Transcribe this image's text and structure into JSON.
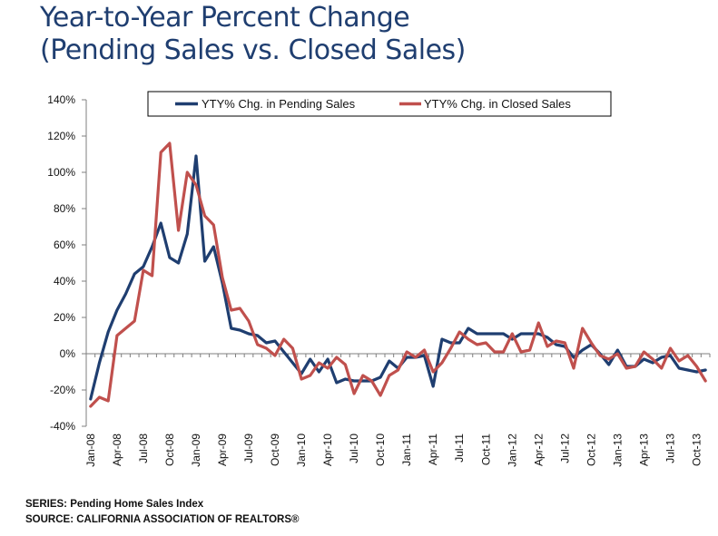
{
  "header": {
    "title_line1": "Year-to-Year Percent Change",
    "title_line2": "(Pending Sales vs. Closed Sales)"
  },
  "footer": {
    "series": "SERIES: Pending Home Sales Index",
    "source": "SOURCE:  CALIFORNIA ASSOCIATION OF REALTORS®"
  },
  "chart_data": {
    "type": "line",
    "title": "Year-to-Year Percent Change (Pending Sales vs. Closed Sales)",
    "xlabel": "",
    "ylabel": "",
    "x": [
      "Jan-08",
      "Feb-08",
      "Mar-08",
      "Apr-08",
      "May-08",
      "Jun-08",
      "Jul-08",
      "Aug-08",
      "Sep-08",
      "Oct-08",
      "Nov-08",
      "Dec-08",
      "Jan-09",
      "Feb-09",
      "Mar-09",
      "Apr-09",
      "May-09",
      "Jun-09",
      "Jul-09",
      "Aug-09",
      "Sep-09",
      "Oct-09",
      "Nov-09",
      "Dec-09",
      "Jan-10",
      "Feb-10",
      "Mar-10",
      "Apr-10",
      "May-10",
      "Jun-10",
      "Jul-10",
      "Aug-10",
      "Sep-10",
      "Oct-10",
      "Nov-10",
      "Dec-10",
      "Jan-11",
      "Feb-11",
      "Mar-11",
      "Apr-11",
      "May-11",
      "Jun-11",
      "Jul-11",
      "Aug-11",
      "Sep-11",
      "Oct-11",
      "Nov-11",
      "Dec-11",
      "Jan-12",
      "Feb-12",
      "Mar-12",
      "Apr-12",
      "May-12",
      "Jun-12",
      "Jul-12",
      "Aug-12",
      "Sep-12",
      "Oct-12",
      "Nov-12",
      "Dec-12",
      "Jan-13",
      "Feb-13",
      "Mar-13",
      "Apr-13",
      "May-13",
      "Jun-13",
      "Jul-13",
      "Aug-13",
      "Sep-13",
      "Oct-13",
      "Nov-13"
    ],
    "x_tick_labels": [
      "Jan-08",
      "Apr-08",
      "Jul-08",
      "Oct-08",
      "Jan-09",
      "Apr-09",
      "Jul-09",
      "Oct-09",
      "Jan-10",
      "Apr-10",
      "Jul-10",
      "Oct-10",
      "Jan-11",
      "Apr-11",
      "Jul-11",
      "Oct-11",
      "Jan-12",
      "Apr-12",
      "Jul-12",
      "Oct-12",
      "Jan-13",
      "Apr-13",
      "Jul-13",
      "Oct-13"
    ],
    "y_tick_labels": [
      "-40%",
      "-20%",
      "0%",
      "20%",
      "40%",
      "60%",
      "80%",
      "100%",
      "120%",
      "140%"
    ],
    "ylim": [
      -40,
      140
    ],
    "y_step": 20,
    "x_tick_every": 3,
    "grid": false,
    "legend_position": "top-center",
    "series": [
      {
        "name": "YTY% Chg. in Pending Sales",
        "color": "#1f3e70",
        "values": [
          -25,
          -5,
          12,
          24,
          33,
          44,
          48,
          59,
          72,
          53,
          50,
          66,
          109,
          51,
          59,
          39,
          14,
          13,
          11,
          10,
          6,
          7,
          1,
          -5,
          -11,
          -3,
          -10,
          -3,
          -16,
          -14,
          -15,
          -15,
          -15,
          -13,
          -4,
          -8,
          -2,
          -2,
          -1,
          -18,
          8,
          6,
          6,
          14,
          11,
          11,
          11,
          11,
          8,
          11,
          11,
          11,
          9,
          5,
          4,
          -2,
          2,
          5,
          0,
          -6,
          2,
          -7,
          -7,
          -3,
          -5,
          -2,
          -1,
          -8,
          -9,
          -10,
          -9
        ]
      },
      {
        "name": "YTY% Chg. in Closed Sales",
        "color": "#c0504d",
        "values": [
          -29,
          -24,
          -26,
          10,
          14,
          18,
          46,
          43,
          111,
          116,
          68,
          100,
          93,
          76,
          71,
          42,
          24,
          25,
          18,
          5,
          3,
          -1,
          8,
          3,
          -14,
          -12,
          -5,
          -8,
          -2,
          -6,
          -22,
          -12,
          -15,
          -23,
          -12,
          -9,
          1,
          -2,
          2,
          -10,
          -5,
          3,
          12,
          8,
          5,
          6,
          1,
          1,
          11,
          1,
          2,
          17,
          4,
          7,
          6,
          -8,
          14,
          6,
          -1,
          -3,
          0,
          -8,
          -7,
          1,
          -3,
          -8,
          3,
          -4,
          -1,
          -7,
          -15
        ]
      }
    ]
  }
}
